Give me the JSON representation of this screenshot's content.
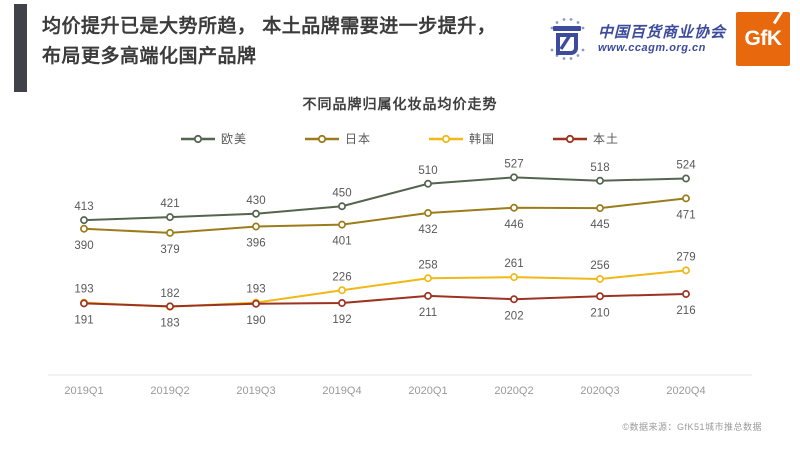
{
  "page": {
    "header": {
      "title_line1": "均价提升已是大势所趋， 本土品牌需要进一步提升，",
      "title_line2": "布局更多高端化国产品牌"
    },
    "logos": {
      "ccagm_name": "中国百货商业协会",
      "ccagm_url": "www.ccagm.org.cn",
      "gfk_label": "GfK"
    },
    "footer_source": "©数据来源：GfK51城市推总数据"
  },
  "colors": {
    "accent_bar": "#3f4349",
    "header_text": "#3b3b3b",
    "ccagm_blue": "#3c4b9c",
    "gfk_orange": "#e8680e",
    "series_europe_us": "#54654f",
    "series_japan": "#9c7c1a",
    "series_korea": "#f0b917",
    "series_local": "#9c3321",
    "data_label": "#595959",
    "axis_text": "#9a9a9a",
    "axis_line": "#e6e6e6"
  },
  "chart_data": {
    "type": "line",
    "title": "不同品牌归属化妆品均价走势",
    "categories": [
      "2019Q1",
      "2019Q2",
      "2019Q3",
      "2019Q4",
      "2020Q1",
      "2020Q2",
      "2020Q3",
      "2020Q4"
    ],
    "series": [
      {
        "id": "europe-us",
        "name": "欧美",
        "color": "#54654f",
        "label_position": "above",
        "values": [
          413,
          421,
          430,
          450,
          510,
          527,
          518,
          524
        ]
      },
      {
        "id": "japan",
        "name": "日本",
        "color": "#9c7c1a",
        "label_position": "below",
        "values": [
          390,
          379,
          396,
          401,
          432,
          446,
          445,
          471
        ]
      },
      {
        "id": "korea",
        "name": "韩国",
        "color": "#f0b917",
        "label_position": "above",
        "values": [
          193,
          182,
          193,
          226,
          258,
          261,
          256,
          279
        ]
      },
      {
        "id": "local",
        "name": "本土",
        "color": "#9c3321",
        "label_position": "below",
        "values": [
          191,
          183,
          190,
          192,
          211,
          202,
          210,
          216
        ]
      }
    ],
    "xlabel": "",
    "ylabel": "",
    "ylim": [
      0,
      560
    ],
    "grid": false,
    "legend_position": "top",
    "data_labels": true
  }
}
